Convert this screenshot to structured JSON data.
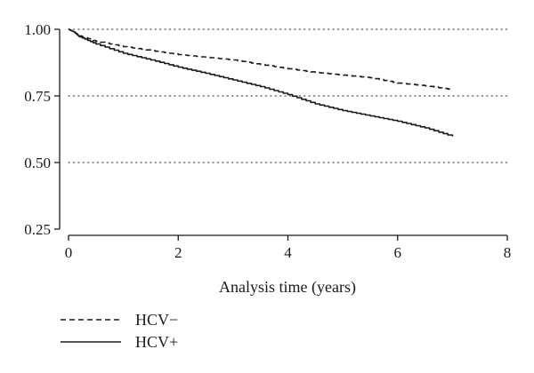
{
  "chart_data": {
    "type": "line",
    "title": "",
    "xlabel": "Analysis time (years)",
    "ylabel": "",
    "xlim": [
      0,
      8
    ],
    "ylim": [
      0.25,
      1.0
    ],
    "xticks": [
      0,
      2,
      4,
      6,
      8
    ],
    "xtick_labels": [
      "0",
      "2",
      "4",
      "6",
      "8"
    ],
    "yticks": [
      0.25,
      0.5,
      0.75,
      1.0
    ],
    "ytick_labels": [
      "0.25",
      "0.50",
      "0.75",
      "1.00"
    ],
    "grid": {
      "horizontal": true,
      "style": "dotted",
      "at": [
        0.5,
        0.75,
        1.0
      ]
    },
    "legend_position": "bottom-left",
    "series": [
      {
        "name": "HCV−",
        "line_style": "dashed",
        "color": "#1a1a1a",
        "x": [
          0,
          0.1,
          0.2,
          0.5,
          1.0,
          1.5,
          2.0,
          2.5,
          3.0,
          3.5,
          4.0,
          4.5,
          5.0,
          5.5,
          6.0,
          6.5,
          7.0
        ],
        "values": [
          1.0,
          0.99,
          0.975,
          0.955,
          0.935,
          0.92,
          0.905,
          0.895,
          0.885,
          0.868,
          0.852,
          0.838,
          0.828,
          0.818,
          0.798,
          0.788,
          0.773
        ]
      },
      {
        "name": "HCV+",
        "line_style": "solid",
        "color": "#1a1a1a",
        "x": [
          0,
          0.1,
          0.2,
          0.5,
          1.0,
          1.5,
          2.0,
          2.5,
          3.0,
          3.5,
          4.0,
          4.5,
          5.0,
          5.5,
          6.0,
          6.5,
          7.0
        ],
        "values": [
          1.0,
          0.99,
          0.972,
          0.945,
          0.91,
          0.885,
          0.858,
          0.835,
          0.81,
          0.785,
          0.755,
          0.72,
          0.695,
          0.675,
          0.655,
          0.63,
          0.598
        ]
      }
    ]
  }
}
